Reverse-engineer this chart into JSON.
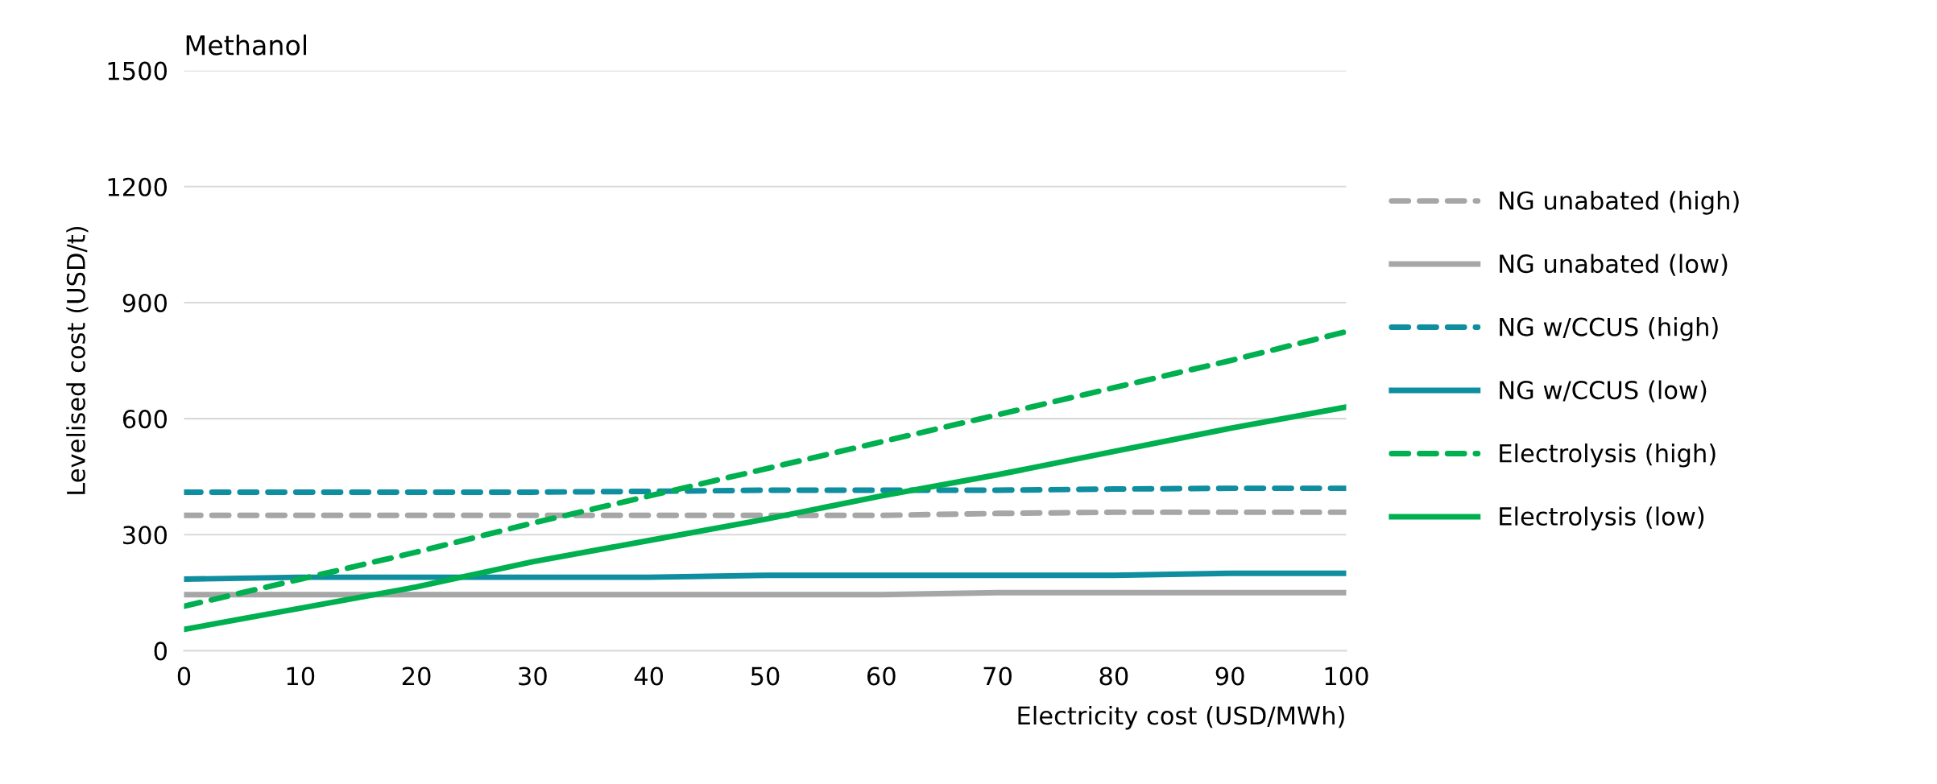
{
  "chart_data": {
    "type": "line",
    "title": "Methanol",
    "xlabel": "Electricity cost (USD/MWh)",
    "ylabel": "Levelised cost (USD/t)",
    "x": [
      0,
      10,
      20,
      30,
      40,
      50,
      60,
      70,
      80,
      90,
      100
    ],
    "series": [
      {
        "name": "NG unabated (high)",
        "color": "#a6a6a6",
        "line_style": "dashed",
        "values": [
          350,
          350,
          350,
          350,
          350,
          350,
          350,
          355,
          358,
          358,
          358
        ]
      },
      {
        "name": "NG unabated (low)",
        "color": "#a6a6a6",
        "line_style": "solid",
        "values": [
          145,
          145,
          145,
          145,
          145,
          145,
          145,
          150,
          150,
          150,
          150
        ]
      },
      {
        "name": "NG w/CCUS (high)",
        "color": "#0f8ea0",
        "line_style": "dashed",
        "values": [
          410,
          410,
          410,
          410,
          412,
          415,
          415,
          415,
          418,
          420,
          420
        ]
      },
      {
        "name": "NG w/CCUS (low)",
        "color": "#0f8ea0",
        "line_style": "solid",
        "values": [
          185,
          190,
          190,
          190,
          190,
          195,
          195,
          195,
          195,
          200,
          200
        ]
      },
      {
        "name": "Electrolysis (high)",
        "color": "#00b050",
        "line_style": "dashed",
        "values": [
          115,
          185,
          255,
          330,
          400,
          470,
          540,
          610,
          680,
          750,
          825
        ]
      },
      {
        "name": "Electrolysis (low)",
        "color": "#00b050",
        "line_style": "solid",
        "values": [
          55,
          110,
          165,
          230,
          285,
          340,
          400,
          455,
          515,
          575,
          630
        ]
      }
    ],
    "xlim": [
      0,
      100
    ],
    "xticks": [
      0,
      10,
      20,
      30,
      40,
      50,
      60,
      70,
      80,
      90,
      100
    ],
    "ylim": [
      0,
      1500
    ],
    "yticks": [
      0,
      300,
      600,
      900,
      1200,
      1500
    ],
    "grid": "y",
    "legend": "right",
    "marker": "none"
  }
}
